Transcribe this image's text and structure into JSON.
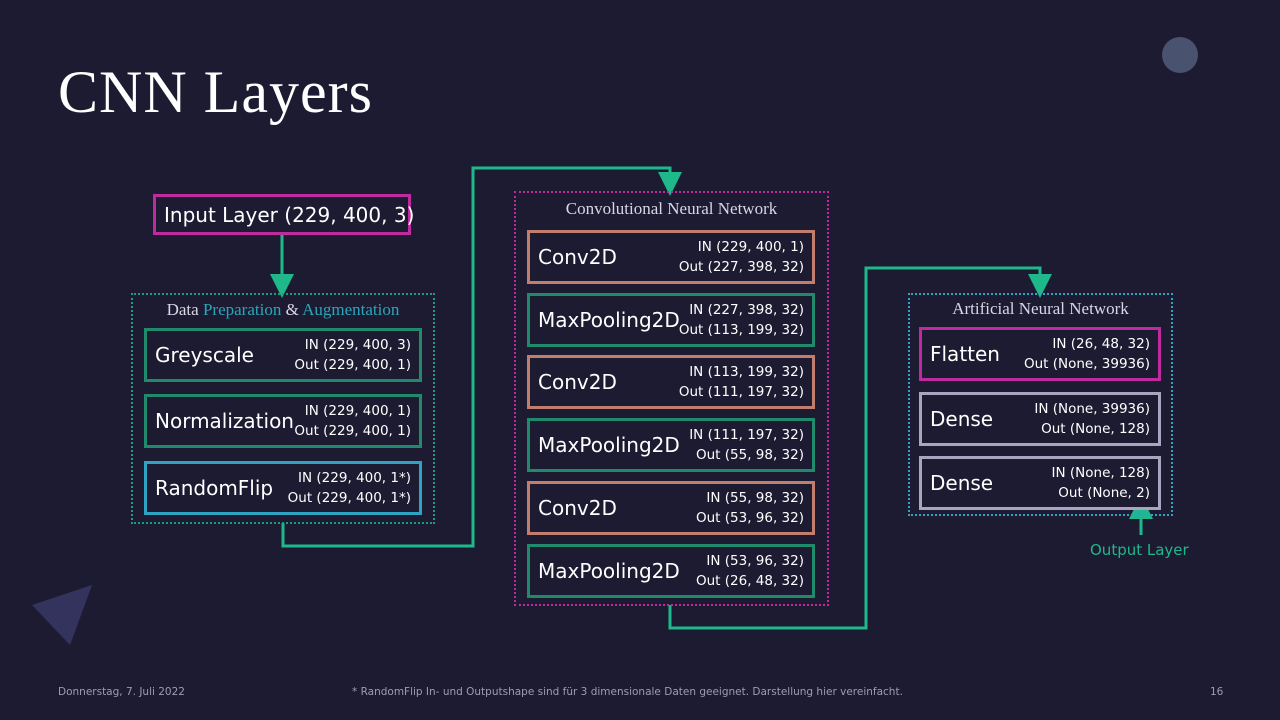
{
  "title": "CNN Layers",
  "input_layer": "Input Layer (229, 400, 3)",
  "data_preparation": {
    "title_parts": [
      "Data ",
      "Preparation",
      " & ",
      "Augmentation"
    ],
    "layers": [
      {
        "name": "Greyscale",
        "in": "IN (229, 400, 3)",
        "out": "Out (229, 400, 1)"
      },
      {
        "name": "Normalization",
        "in": "IN (229, 400, 1)",
        "out": "Out (229, 400, 1)"
      },
      {
        "name": "RandomFlip",
        "in": "IN (229, 400, 1*)",
        "out": "Out (229, 400, 1*)"
      }
    ]
  },
  "cnn": {
    "title": "Convolutional Neural Network",
    "layers": [
      {
        "name": "Conv2D",
        "in": "IN (229, 400, 1)",
        "out": "Out (227, 398, 32)"
      },
      {
        "name": "MaxPooling2D",
        "in": "IN (227, 398, 32)",
        "out": "Out (113, 199, 32)"
      },
      {
        "name": "Conv2D",
        "in": "IN (113, 199, 32)",
        "out": "Out (111, 197, 32)"
      },
      {
        "name": "MaxPooling2D",
        "in": "IN (111, 197, 32)",
        "out": "Out (55, 98, 32)"
      },
      {
        "name": "Conv2D",
        "in": "IN (55, 98, 32)",
        "out": "Out (53, 96, 32)"
      },
      {
        "name": "MaxPooling2D",
        "in": "IN (53, 96, 32)",
        "out": "Out (26, 48, 32)"
      }
    ]
  },
  "ann": {
    "title": "Artificial Neural Network",
    "layers": [
      {
        "name": "Flatten",
        "in": "IN (26, 48, 32)",
        "out": "Out (None, 39936)"
      },
      {
        "name": "Dense",
        "in": "IN (None, 39936)",
        "out": "Out (None, 128)"
      },
      {
        "name": "Dense",
        "in": "IN (None, 128)",
        "out": "Out (None, 2)"
      }
    ]
  },
  "output_label": "Output Layer",
  "footer": {
    "date": "Donnerstag, 7. Juli 2022",
    "note": "* RandomFlip In- und Outputshape sind für 3 dimensionale Daten geeignet. Darstellung hier vereinfacht.",
    "page": "16"
  }
}
